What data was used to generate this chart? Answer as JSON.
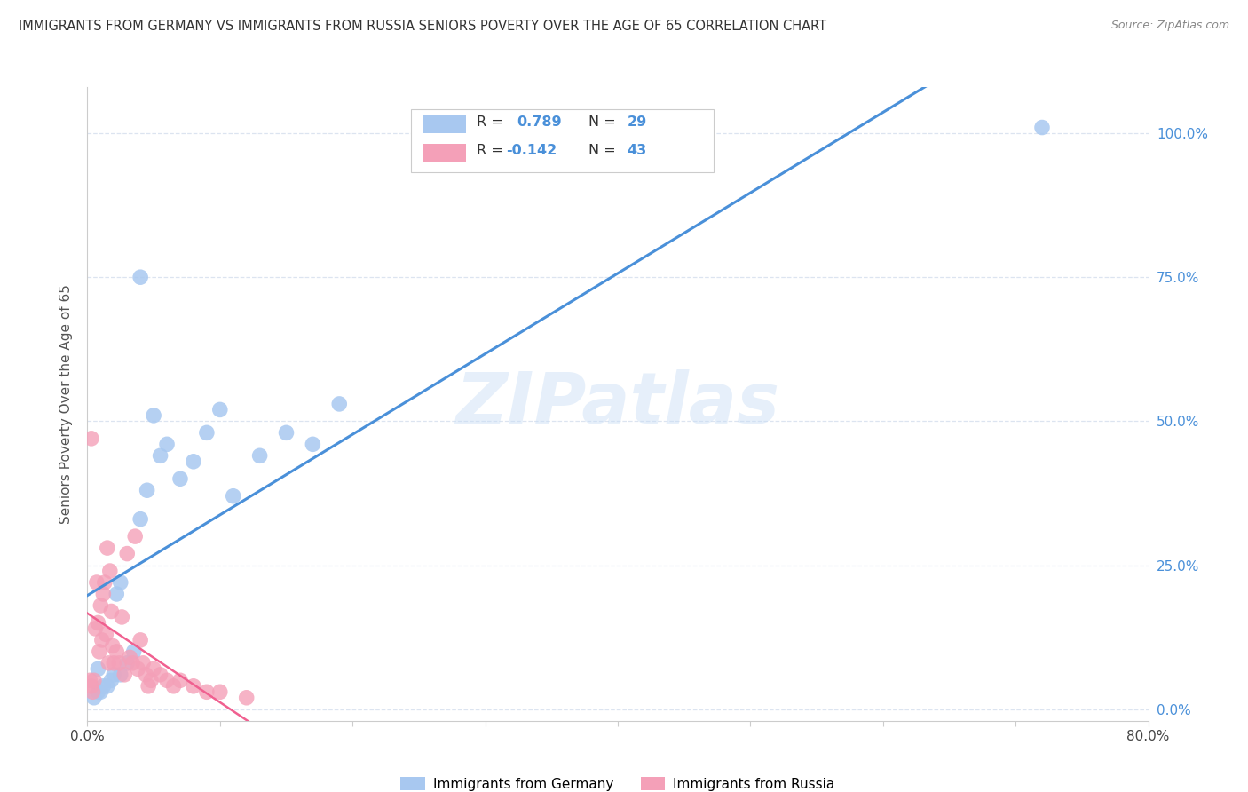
{
  "title": "IMMIGRANTS FROM GERMANY VS IMMIGRANTS FROM RUSSIA SENIORS POVERTY OVER THE AGE OF 65 CORRELATION CHART",
  "source": "Source: ZipAtlas.com",
  "ylabel": "Seniors Poverty Over the Age of 65",
  "xlim": [
    0.0,
    0.8
  ],
  "ylim": [
    -0.02,
    1.08
  ],
  "yticks": [
    0.0,
    0.25,
    0.5,
    0.75,
    1.0
  ],
  "xticks": [
    0.0,
    0.1,
    0.2,
    0.3,
    0.4,
    0.5,
    0.6,
    0.7,
    0.8
  ],
  "watermark": "ZIPatlas",
  "germany_color": "#a8c8f0",
  "russia_color": "#f4a0b8",
  "germany_line_color": "#4a90d9",
  "russia_line_color": "#f06090",
  "germany_R": 0.789,
  "germany_N": 29,
  "russia_R": -0.142,
  "russia_N": 43,
  "germany_x": [
    0.005,
    0.008,
    0.01,
    0.012,
    0.015,
    0.018,
    0.02,
    0.022,
    0.025,
    0.03,
    0.035,
    0.04,
    0.045,
    0.05,
    0.055,
    0.06,
    0.07,
    0.08,
    0.09,
    0.1,
    0.11,
    0.13,
    0.15,
    0.17,
    0.19,
    0.04,
    0.72,
    0.008,
    0.025
  ],
  "germany_y": [
    0.02,
    0.03,
    0.03,
    0.04,
    0.04,
    0.05,
    0.06,
    0.2,
    0.22,
    0.08,
    0.1,
    0.33,
    0.38,
    0.51,
    0.44,
    0.46,
    0.4,
    0.43,
    0.48,
    0.52,
    0.37,
    0.44,
    0.48,
    0.46,
    0.53,
    0.75,
    1.01,
    0.07,
    0.06
  ],
  "russia_x": [
    0.002,
    0.003,
    0.004,
    0.005,
    0.006,
    0.007,
    0.008,
    0.009,
    0.01,
    0.011,
    0.012,
    0.013,
    0.014,
    0.015,
    0.016,
    0.017,
    0.018,
    0.019,
    0.02,
    0.022,
    0.024,
    0.026,
    0.028,
    0.03,
    0.032,
    0.034,
    0.036,
    0.038,
    0.04,
    0.042,
    0.044,
    0.046,
    0.048,
    0.05,
    0.055,
    0.06,
    0.065,
    0.07,
    0.08,
    0.09,
    0.1,
    0.12,
    0.003
  ],
  "russia_y": [
    0.05,
    0.04,
    0.03,
    0.05,
    0.14,
    0.22,
    0.15,
    0.1,
    0.18,
    0.12,
    0.2,
    0.22,
    0.13,
    0.28,
    0.08,
    0.24,
    0.17,
    0.11,
    0.08,
    0.1,
    0.08,
    0.16,
    0.06,
    0.27,
    0.09,
    0.08,
    0.3,
    0.07,
    0.12,
    0.08,
    0.06,
    0.04,
    0.05,
    0.07,
    0.06,
    0.05,
    0.04,
    0.05,
    0.04,
    0.03,
    0.03,
    0.02,
    0.47
  ],
  "background_color": "#ffffff",
  "grid_color": "#dce4f0",
  "title_color": "#333333",
  "right_axis_color": "#4a90d9"
}
